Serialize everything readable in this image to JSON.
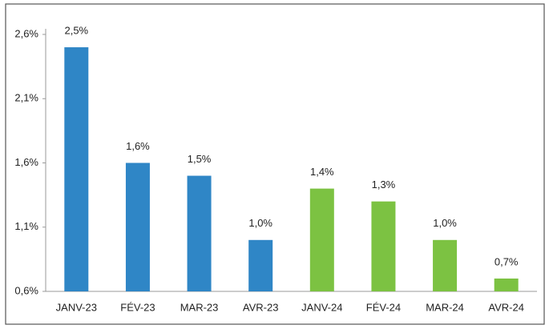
{
  "chart_data": {
    "type": "bar",
    "categories": [
      "JANV-23",
      "FÉV-23",
      "MAR-23",
      "AVR-23",
      "JANV-24",
      "FÉV-24",
      "MAR-24",
      "AVR-24"
    ],
    "values": [
      2.5,
      1.6,
      1.5,
      1.0,
      1.4,
      1.3,
      1.0,
      0.7
    ],
    "value_labels": [
      "2,5%",
      "1,6%",
      "1,5%",
      "1,0%",
      "1,4%",
      "1,3%",
      "1,0%",
      "0,7%"
    ],
    "colors": [
      "#2f86c6",
      "#2f86c6",
      "#2f86c6",
      "#2f86c6",
      "#7cc242",
      "#7cc242",
      "#7cc242",
      "#7cc242"
    ],
    "ylim": [
      0.6,
      2.6
    ],
    "yticks": [
      {
        "value": 0.6,
        "label": "0,6%"
      },
      {
        "value": 1.1,
        "label": "1,1%"
      },
      {
        "value": 1.6,
        "label": "1,6%"
      },
      {
        "value": 2.1,
        "label": "2,1%"
      },
      {
        "value": 2.6,
        "label": "2,6%"
      }
    ],
    "grid": false
  }
}
